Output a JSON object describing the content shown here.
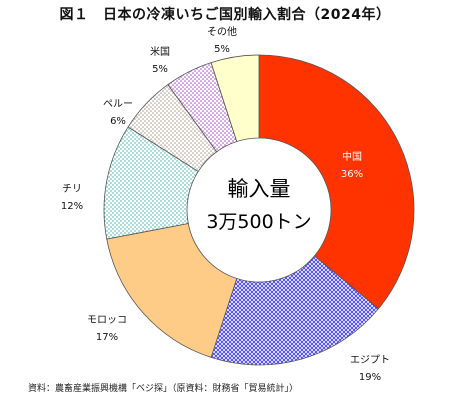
{
  "chart_data": {
    "type": "pie",
    "title": "図１　日本の冷凍いちご国別輸入割合（2024年）",
    "center_label": [
      "輸入量",
      "3万500トン"
    ],
    "slices": [
      {
        "name": "中国",
        "value": 36,
        "label": "36%",
        "color": "#ff3300",
        "pattern": "solid"
      },
      {
        "name": "エジプト",
        "value": 19,
        "label": "19%",
        "color": "#3b3bff",
        "pattern": "grid"
      },
      {
        "name": "モロッコ",
        "value": 17,
        "label": "17%",
        "color": "#ffcc88",
        "pattern": "solid"
      },
      {
        "name": "チリ",
        "value": 12,
        "label": "12%",
        "color": "#33bbbb",
        "pattern": "dots"
      },
      {
        "name": "ペルー",
        "value": 6,
        "label": "6%",
        "color": "#b8a890",
        "pattern": "dots"
      },
      {
        "name": "米国",
        "value": 5,
        "label": "5%",
        "color": "#aa44cc",
        "pattern": "dots"
      },
      {
        "name": "その他",
        "value": 5,
        "label": "5%",
        "color": "#ffffcc",
        "pattern": "solid"
      }
    ],
    "source": "資料：農畜産業振興機構「ベジ探」（原資料：財務省「貿易統計」）"
  }
}
